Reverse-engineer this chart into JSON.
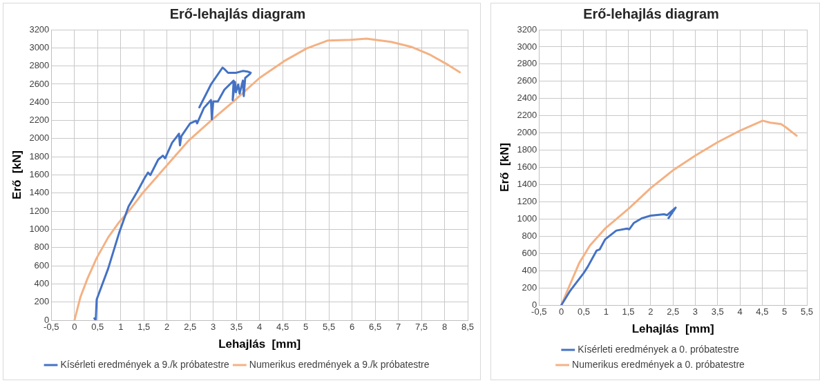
{
  "chart_data": [
    {
      "type": "line",
      "title": "Erő-lehajlás diagram",
      "xlabel": "Lehajlás  [mm]",
      "ylabel": "Erő  [kN]",
      "xlim": [
        -0.5,
        8.5
      ],
      "ylim": [
        0,
        3200
      ],
      "xticks": [
        {
          "value": -0.5,
          "label": "-0,5"
        },
        0,
        {
          "value": 0.5,
          "label": "0,5"
        },
        1,
        {
          "value": 1.5,
          "label": "1,5"
        },
        2,
        {
          "value": 2.5,
          "label": "2,5"
        },
        3,
        {
          "value": 3.5,
          "label": "3,5"
        },
        4,
        {
          "value": 4.5,
          "label": "4,5"
        },
        5,
        {
          "value": 5.5,
          "label": "5,5"
        },
        6,
        {
          "value": 6.5,
          "label": "6,5"
        },
        7,
        {
          "value": 7.5,
          "label": "7,5"
        },
        8,
        {
          "value": 8.5,
          "label": "8,5"
        }
      ],
      "yticks": [
        0,
        200,
        400,
        600,
        800,
        1000,
        1200,
        1400,
        1600,
        1800,
        2000,
        2200,
        2400,
        2600,
        2800,
        3000,
        3200
      ],
      "grid": true,
      "legend": "bottom",
      "marker": "none",
      "line_style": "solid",
      "series": [
        {
          "name": "Kísérleti eredmények a 9./k próbatestre",
          "color": "#4472c4",
          "x": [
            0.43,
            0.46,
            0.48,
            0.73,
            0.97,
            1.17,
            1.32,
            1.37,
            1.52,
            1.59,
            1.64,
            1.81,
            1.91,
            1.96,
            2.11,
            2.26,
            2.28,
            2.31,
            2.5,
            2.63,
            2.65,
            2.8,
            2.95,
            2.97,
            3.0,
            3.1,
            3.24,
            3.44,
            3.42,
            3.47,
            3.49,
            3.54,
            3.57,
            3.64,
            3.66,
            3.69,
            3.79,
            3.81,
            3.74,
            3.64,
            3.49,
            3.32,
            3.24,
            3.2,
            2.95,
            2.7
          ],
          "values": [
            20,
            0,
            228,
            571,
            970,
            1255,
            1384,
            1427,
            1569,
            1626,
            1598,
            1769,
            1812,
            1783,
            1954,
            2054,
            1926,
            2026,
            2168,
            2197,
            2168,
            2340,
            2425,
            2211,
            2410,
            2410,
            2539,
            2639,
            2425,
            2625,
            2511,
            2596,
            2496,
            2639,
            2468,
            2668,
            2710,
            2725,
            2739,
            2745,
            2725,
            2725,
            2767,
            2782,
            2596,
            2345
          ]
        },
        {
          "name": "Numerikus eredmények a 9./k próbatestre",
          "color": "#f4b183",
          "x": [
            0,
            0.13,
            0.28,
            0.48,
            0.73,
            0.97,
            1.17,
            1.47,
            1.96,
            2.45,
            2.95,
            3.44,
            4,
            4.53,
            5.02,
            5.47,
            5.96,
            6.31,
            6.85,
            7.3,
            7.69,
            8.04,
            8.33
          ],
          "values": [
            0,
            257,
            457,
            685,
            913,
            1084,
            1198,
            1398,
            1683,
            1969,
            2197,
            2411,
            2668,
            2853,
            2994,
            3080,
            3088,
            3102,
            3065,
            3008,
            2923,
            2823,
            2731
          ]
        }
      ]
    },
    {
      "type": "line",
      "title": "Erő-lehajlás diagram",
      "xlabel": "Lehajlás  [mm]",
      "ylabel": "Erő  [kN]",
      "xlim": [
        -0.5,
        5.5
      ],
      "ylim": [
        0,
        3200
      ],
      "xticks": [
        {
          "value": -0.5,
          "label": "-0,5"
        },
        0,
        {
          "value": 0.5,
          "label": "0,5"
        },
        1,
        {
          "value": 1.5,
          "label": "1,5"
        },
        2,
        {
          "value": 2.5,
          "label": "2,5"
        },
        3,
        {
          "value": 3.5,
          "label": "3,5"
        },
        4,
        {
          "value": 4.5,
          "label": "4,5"
        },
        5,
        {
          "value": 5.5,
          "label": "5,5"
        }
      ],
      "yticks": [
        0,
        200,
        400,
        600,
        800,
        1000,
        1200,
        1400,
        1600,
        1800,
        2000,
        2200,
        2400,
        2600,
        2800,
        3000,
        3200
      ],
      "grid": true,
      "legend": "bottom",
      "marker": "none",
      "line_style": "solid",
      "series": [
        {
          "name": "Kísérleti eredmények a 0. próbatestre",
          "color": "#4472c4",
          "x": [
            0,
            0.2,
            0.5,
            0.59,
            0.79,
            0.86,
            0.98,
            1.23,
            1.47,
            1.52,
            1.62,
            1.81,
            2.0,
            2.3,
            2.37,
            2.56,
            2.4
          ],
          "values": [
            0,
            168,
            372,
            444,
            633,
            647,
            763,
            865,
            888,
            880,
            952,
            1010,
            1039,
            1054,
            1045,
            1132,
            1010
          ]
        },
        {
          "name": "Numerikus eredmények a 0. próbatestre",
          "color": "#f4b183",
          "x": [
            0,
            0.16,
            0.4,
            0.64,
            0.99,
            1.52,
            2.0,
            2.49,
            3.0,
            3.51,
            4.0,
            4.51,
            4.68,
            4.92,
            5.02,
            5.27
          ],
          "values": [
            0,
            197,
            488,
            691,
            894,
            1126,
            1358,
            1561,
            1736,
            1895,
            2026,
            2142,
            2119,
            2104,
            2069,
            1968
          ]
        }
      ]
    }
  ]
}
